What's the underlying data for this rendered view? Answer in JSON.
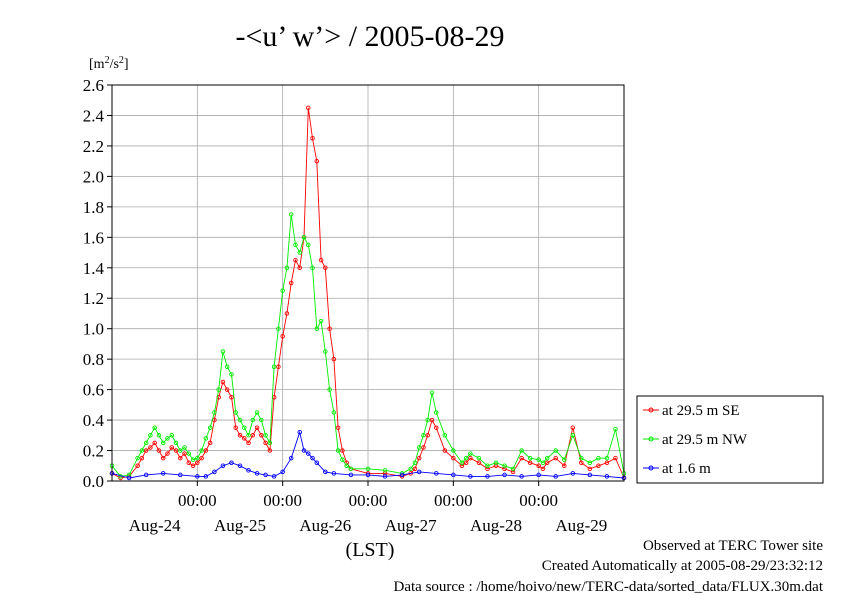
{
  "chart_data": {
    "type": "line",
    "title": "-<u’ w’> / 2005-08-29",
    "ylabel_unit_base": "[m",
    "ylabel_unit_sup1": "2",
    "ylabel_unit_mid": "/s",
    "ylabel_unit_sup2": "2",
    "ylabel_unit_end": "]",
    "xlabel": "(LST)",
    "ylim": [
      0,
      2.6
    ],
    "yticks": [
      "0.0",
      "0.2",
      "0.4",
      "0.6",
      "0.8",
      "1.0",
      "1.2",
      "1.4",
      "1.6",
      "1.8",
      "2.0",
      "2.2",
      "2.4",
      "2.6"
    ],
    "xlim_days": [
      0,
      6
    ],
    "midnight_labels": [
      "00:00",
      "00:00",
      "00:00",
      "00:00",
      "00:00"
    ],
    "date_labels": [
      "Aug-24",
      "Aug-25",
      "Aug-26",
      "Aug-27",
      "Aug-28",
      "Aug-29"
    ],
    "grid": true,
    "legend_position": "right",
    "series": [
      {
        "name": "at 29.5 m SE",
        "color": "#ff0000",
        "x": [
          0.0,
          0.1,
          0.2,
          0.3,
          0.35,
          0.4,
          0.45,
          0.5,
          0.55,
          0.6,
          0.65,
          0.7,
          0.75,
          0.8,
          0.85,
          0.9,
          0.95,
          1.0,
          1.05,
          1.1,
          1.15,
          1.2,
          1.25,
          1.3,
          1.35,
          1.4,
          1.45,
          1.5,
          1.55,
          1.6,
          1.65,
          1.7,
          1.75,
          1.8,
          1.85,
          1.9,
          1.95,
          2.0,
          2.05,
          2.1,
          2.15,
          2.2,
          2.25,
          2.3,
          2.35,
          2.4,
          2.45,
          2.5,
          2.55,
          2.6,
          2.65,
          2.7,
          2.75,
          2.8,
          3.0,
          3.2,
          3.4,
          3.5,
          3.55,
          3.6,
          3.65,
          3.7,
          3.75,
          3.8,
          3.9,
          4.0,
          4.1,
          4.15,
          4.2,
          4.3,
          4.4,
          4.5,
          4.6,
          4.7,
          4.8,
          4.9,
          5.0,
          5.05,
          5.1,
          5.2,
          5.3,
          5.4,
          5.5,
          5.6,
          5.7,
          5.8,
          5.9,
          6.0
        ],
        "y": [
          0.05,
          0.02,
          0.03,
          0.1,
          0.15,
          0.2,
          0.22,
          0.25,
          0.2,
          0.15,
          0.18,
          0.22,
          0.2,
          0.15,
          0.18,
          0.12,
          0.1,
          0.12,
          0.15,
          0.2,
          0.25,
          0.4,
          0.55,
          0.65,
          0.6,
          0.55,
          0.35,
          0.3,
          0.28,
          0.25,
          0.3,
          0.35,
          0.3,
          0.25,
          0.2,
          0.55,
          0.75,
          0.95,
          1.1,
          1.3,
          1.45,
          1.4,
          1.6,
          2.45,
          2.25,
          2.1,
          1.45,
          1.4,
          1.0,
          0.8,
          0.35,
          0.2,
          0.12,
          0.08,
          0.05,
          0.05,
          0.03,
          0.05,
          0.08,
          0.15,
          0.22,
          0.3,
          0.4,
          0.35,
          0.2,
          0.15,
          0.1,
          0.12,
          0.15,
          0.12,
          0.08,
          0.1,
          0.08,
          0.06,
          0.15,
          0.12,
          0.1,
          0.08,
          0.12,
          0.15,
          0.1,
          0.35,
          0.12,
          0.08,
          0.1,
          0.12,
          0.15,
          0.02
        ]
      },
      {
        "name": "at 29.5 m NW",
        "color": "#00ee00",
        "x": [
          0.0,
          0.1,
          0.2,
          0.3,
          0.35,
          0.4,
          0.45,
          0.5,
          0.55,
          0.6,
          0.65,
          0.7,
          0.75,
          0.8,
          0.85,
          0.9,
          0.95,
          1.0,
          1.05,
          1.1,
          1.15,
          1.2,
          1.25,
          1.3,
          1.35,
          1.4,
          1.45,
          1.5,
          1.55,
          1.6,
          1.65,
          1.7,
          1.75,
          1.8,
          1.85,
          1.9,
          1.95,
          2.0,
          2.05,
          2.1,
          2.15,
          2.2,
          2.25,
          2.3,
          2.35,
          2.4,
          2.45,
          2.5,
          2.55,
          2.6,
          2.65,
          2.7,
          2.75,
          2.8,
          3.0,
          3.2,
          3.4,
          3.5,
          3.55,
          3.6,
          3.65,
          3.7,
          3.75,
          3.8,
          3.9,
          4.0,
          4.1,
          4.15,
          4.2,
          4.3,
          4.4,
          4.5,
          4.6,
          4.7,
          4.8,
          4.9,
          5.0,
          5.05,
          5.1,
          5.2,
          5.3,
          5.4,
          5.5,
          5.6,
          5.7,
          5.8,
          5.9,
          6.0
        ],
        "y": [
          0.1,
          0.03,
          0.04,
          0.15,
          0.2,
          0.25,
          0.3,
          0.35,
          0.3,
          0.25,
          0.28,
          0.3,
          0.25,
          0.2,
          0.22,
          0.18,
          0.14,
          0.15,
          0.2,
          0.28,
          0.35,
          0.45,
          0.6,
          0.85,
          0.75,
          0.7,
          0.45,
          0.4,
          0.35,
          0.3,
          0.4,
          0.45,
          0.4,
          0.3,
          0.25,
          0.75,
          1.0,
          1.25,
          1.4,
          1.75,
          1.55,
          1.5,
          1.6,
          1.55,
          1.4,
          1.0,
          1.05,
          0.85,
          0.6,
          0.45,
          0.2,
          0.14,
          0.1,
          0.08,
          0.08,
          0.07,
          0.05,
          0.08,
          0.12,
          0.22,
          0.3,
          0.4,
          0.58,
          0.45,
          0.3,
          0.2,
          0.12,
          0.15,
          0.18,
          0.15,
          0.1,
          0.12,
          0.1,
          0.08,
          0.2,
          0.15,
          0.14,
          0.12,
          0.15,
          0.2,
          0.14,
          0.3,
          0.15,
          0.12,
          0.15,
          0.15,
          0.34,
          0.05
        ]
      },
      {
        "name": "at 1.6 m",
        "color": "#0000ff",
        "x": [
          0.0,
          0.2,
          0.4,
          0.6,
          0.8,
          1.0,
          1.1,
          1.2,
          1.3,
          1.4,
          1.5,
          1.6,
          1.7,
          1.8,
          1.9,
          2.0,
          2.1,
          2.2,
          2.25,
          2.3,
          2.35,
          2.4,
          2.5,
          2.6,
          2.8,
          3.0,
          3.2,
          3.4,
          3.6,
          3.8,
          4.0,
          4.2,
          4.4,
          4.6,
          4.8,
          5.0,
          5.2,
          5.4,
          5.6,
          5.8,
          6.0
        ],
        "y": [
          0.05,
          0.02,
          0.04,
          0.05,
          0.04,
          0.03,
          0.03,
          0.06,
          0.1,
          0.12,
          0.1,
          0.07,
          0.05,
          0.04,
          0.03,
          0.06,
          0.15,
          0.32,
          0.2,
          0.18,
          0.15,
          0.12,
          0.06,
          0.05,
          0.04,
          0.04,
          0.03,
          0.04,
          0.06,
          0.05,
          0.04,
          0.03,
          0.03,
          0.04,
          0.03,
          0.04,
          0.03,
          0.05,
          0.04,
          0.03,
          0.02
        ]
      }
    ]
  },
  "footer": {
    "line1": "Observed at TERC Tower site",
    "line2": "Created Automatically at 2005-08-29/23:32:12",
    "line3": "Data source : /home/hoivo/new/TERC-data/sorted_data/FLUX.30m.dat"
  }
}
